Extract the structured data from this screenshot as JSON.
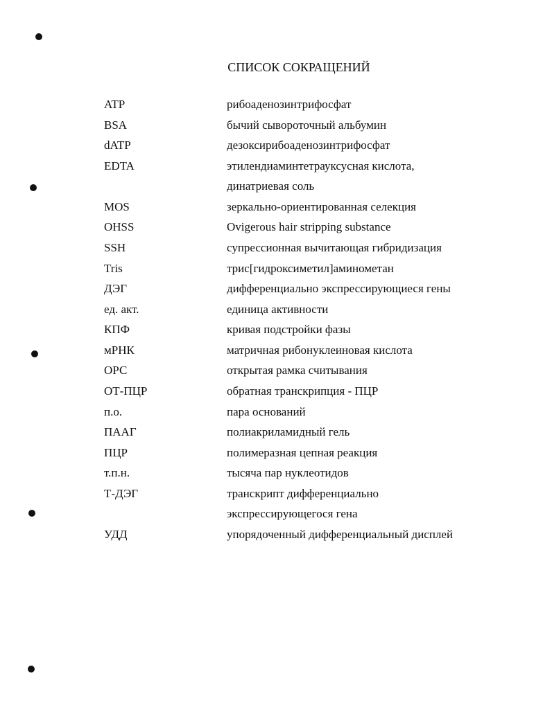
{
  "title": "СПИСОК СОКРАЩЕНИЙ",
  "entries": [
    {
      "abbr": "ATP",
      "def": [
        "рибоаденозинтрифосфат"
      ]
    },
    {
      "abbr": "BSA",
      "def": [
        "бычий сывороточный альбумин"
      ]
    },
    {
      "abbr": "dATP",
      "def": [
        "дезоксирибоаденозинтрифосфат"
      ]
    },
    {
      "abbr": "EDTA",
      "def": [
        "этилендиаминтетрауксусная кислота,",
        "динатриевая соль"
      ]
    },
    {
      "abbr": "MOS",
      "def": [
        "зеркально-ориентированная селекция"
      ]
    },
    {
      "abbr": "OHSS",
      "def": [
        "Ovigerous hair stripping substance"
      ]
    },
    {
      "abbr": "SSH",
      "def": [
        "супрессионная вычитающая гибридизация"
      ]
    },
    {
      "abbr": "Tris",
      "def": [
        "трис[гидроксиметил]аминометан"
      ]
    },
    {
      "abbr": "ДЭГ",
      "def": [
        "дифференциально экспрессирующиеся гены"
      ]
    },
    {
      "abbr": "ед. акт.",
      "def": [
        "единица активности"
      ]
    },
    {
      "abbr": "КПФ",
      "def": [
        "кривая подстройки фазы"
      ]
    },
    {
      "abbr": "мРНК",
      "def": [
        "матричная рибонуклеиновая кислота"
      ]
    },
    {
      "abbr": "ОРС",
      "def": [
        "открытая рамка считывания"
      ]
    },
    {
      "abbr": "ОТ-ПЦР",
      "def": [
        "обратная транскрипция - ПЦР"
      ]
    },
    {
      "abbr": "п.о.",
      "def": [
        "пара оснований"
      ]
    },
    {
      "abbr": "ПААГ",
      "def": [
        "полиакриламидный гель"
      ]
    },
    {
      "abbr": "ПЦР",
      "def": [
        "полимеразная цепная реакция"
      ]
    },
    {
      "abbr": "т.п.н.",
      "def": [
        "тысяча пар нуклеотидов"
      ]
    },
    {
      "abbr": "Т-ДЭГ",
      "def": [
        "транскрипт дифференциально",
        "экспрессирующегося гена"
      ]
    },
    {
      "abbr": "УДД",
      "def": [
        "упорядоченный дифференциальный дисплей"
      ]
    }
  ]
}
